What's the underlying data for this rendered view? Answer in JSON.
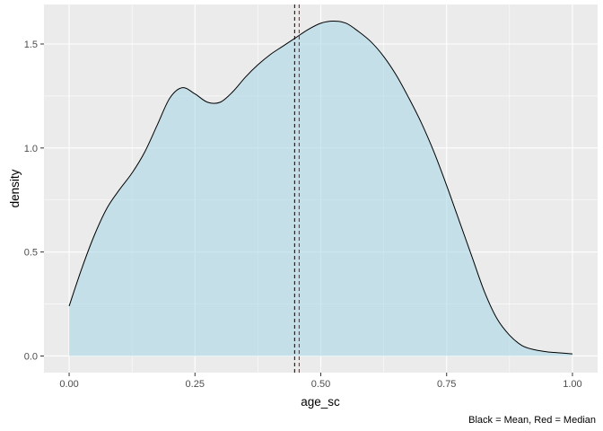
{
  "chart_data": {
    "type": "area",
    "xlabel": "age_sc",
    "ylabel": "density",
    "caption": "Black = Mean, Red = Median",
    "xlim": [
      -0.05,
      1.05
    ],
    "ylim": [
      -0.08,
      1.69
    ],
    "x_ticks": [
      0.0,
      0.25,
      0.5,
      0.75,
      1.0
    ],
    "x_tick_labels": [
      "0.00",
      "0.25",
      "0.50",
      "0.75",
      "1.00"
    ],
    "y_ticks": [
      0.0,
      0.5,
      1.0,
      1.5
    ],
    "y_tick_labels": [
      "0.0",
      "0.5",
      "1.0",
      "1.5"
    ],
    "grid": true,
    "colors": {
      "panel": "#ebebeb",
      "grid": "#ffffff",
      "fill": "#add8e6",
      "line": "#000000",
      "mean_line": "#000000",
      "median_line": "#cc0000"
    },
    "series": [
      {
        "x": [
          0.0,
          0.025,
          0.05,
          0.075,
          0.1,
          0.125,
          0.15,
          0.175,
          0.2,
          0.225,
          0.25,
          0.275,
          0.3,
          0.325,
          0.35,
          0.375,
          0.4,
          0.425,
          0.45,
          0.475,
          0.5,
          0.525,
          0.55,
          0.575,
          0.6,
          0.625,
          0.65,
          0.675,
          0.7,
          0.725,
          0.75,
          0.775,
          0.8,
          0.825,
          0.85,
          0.875,
          0.9,
          0.925,
          0.95,
          0.975,
          1.0
        ],
        "y": [
          0.24,
          0.42,
          0.58,
          0.71,
          0.8,
          0.88,
          0.98,
          1.11,
          1.24,
          1.29,
          1.26,
          1.22,
          1.22,
          1.27,
          1.34,
          1.4,
          1.45,
          1.49,
          1.53,
          1.57,
          1.6,
          1.61,
          1.6,
          1.56,
          1.51,
          1.44,
          1.35,
          1.24,
          1.12,
          0.98,
          0.82,
          0.65,
          0.48,
          0.31,
          0.18,
          0.1,
          0.05,
          0.03,
          0.02,
          0.015,
          0.01
        ]
      }
    ],
    "mean": 0.448,
    "median": 0.457
  }
}
